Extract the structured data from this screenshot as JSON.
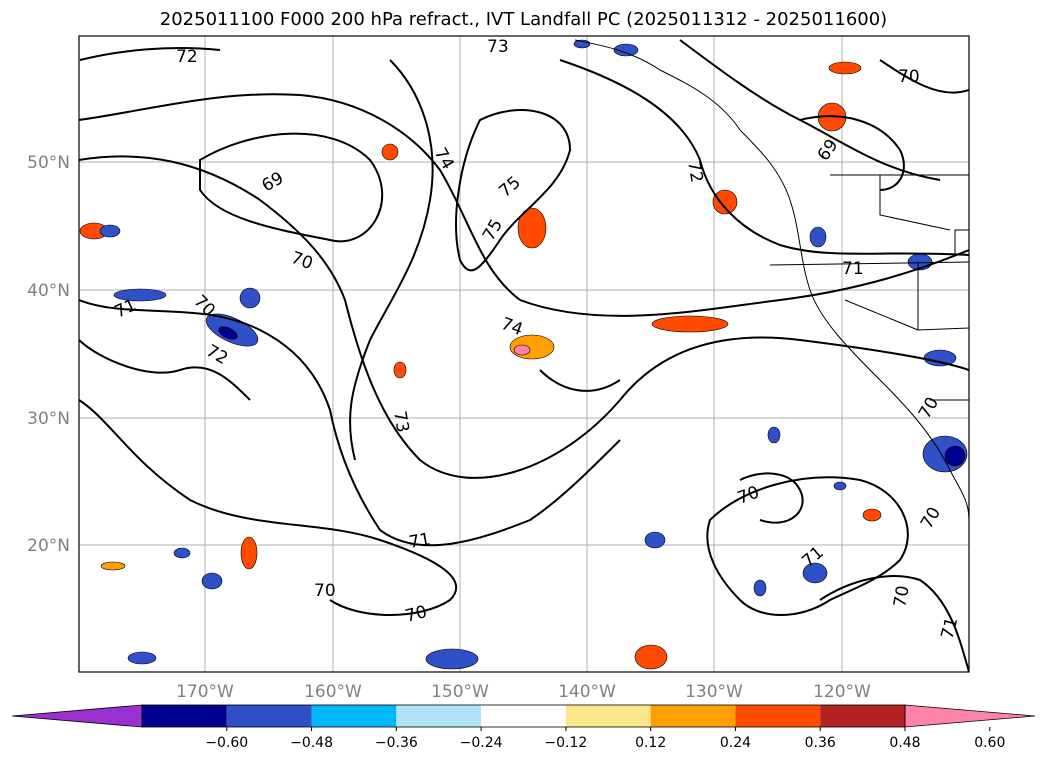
{
  "title": "2025011100 F000 200 hPa refract., IVT Landfall PC (2025011312 - 2025011600)",
  "map": {
    "lon_ticks": [
      "170°W",
      "160°W",
      "150°W",
      "140°W",
      "130°W",
      "120°W"
    ],
    "lat_ticks": [
      "50°N",
      "40°N",
      "30°N",
      "20°N"
    ],
    "contour_labels": [
      "72",
      "73",
      "70",
      "74",
      "75",
      "69",
      "70",
      "71",
      "70",
      "72",
      "74",
      "75",
      "73",
      "72",
      "69",
      "71",
      "70",
      "70",
      "71",
      "70",
      "71",
      "70",
      "71",
      "70",
      "70"
    ],
    "grid": true
  },
  "colorbar": {
    "ticks": [
      "−0.60",
      "−0.48",
      "−0.36",
      "−0.24",
      "−0.12",
      "0.12",
      "0.24",
      "0.36",
      "0.48",
      "0.60"
    ],
    "colors": [
      "#9b30d0",
      "#000090",
      "#3050c8",
      "#00b8f8",
      "#b0e2fa",
      "#ffffff",
      "#fde68a",
      "#ffa000",
      "#ff4a00",
      "#b22222",
      "#ff82a8"
    ]
  }
}
